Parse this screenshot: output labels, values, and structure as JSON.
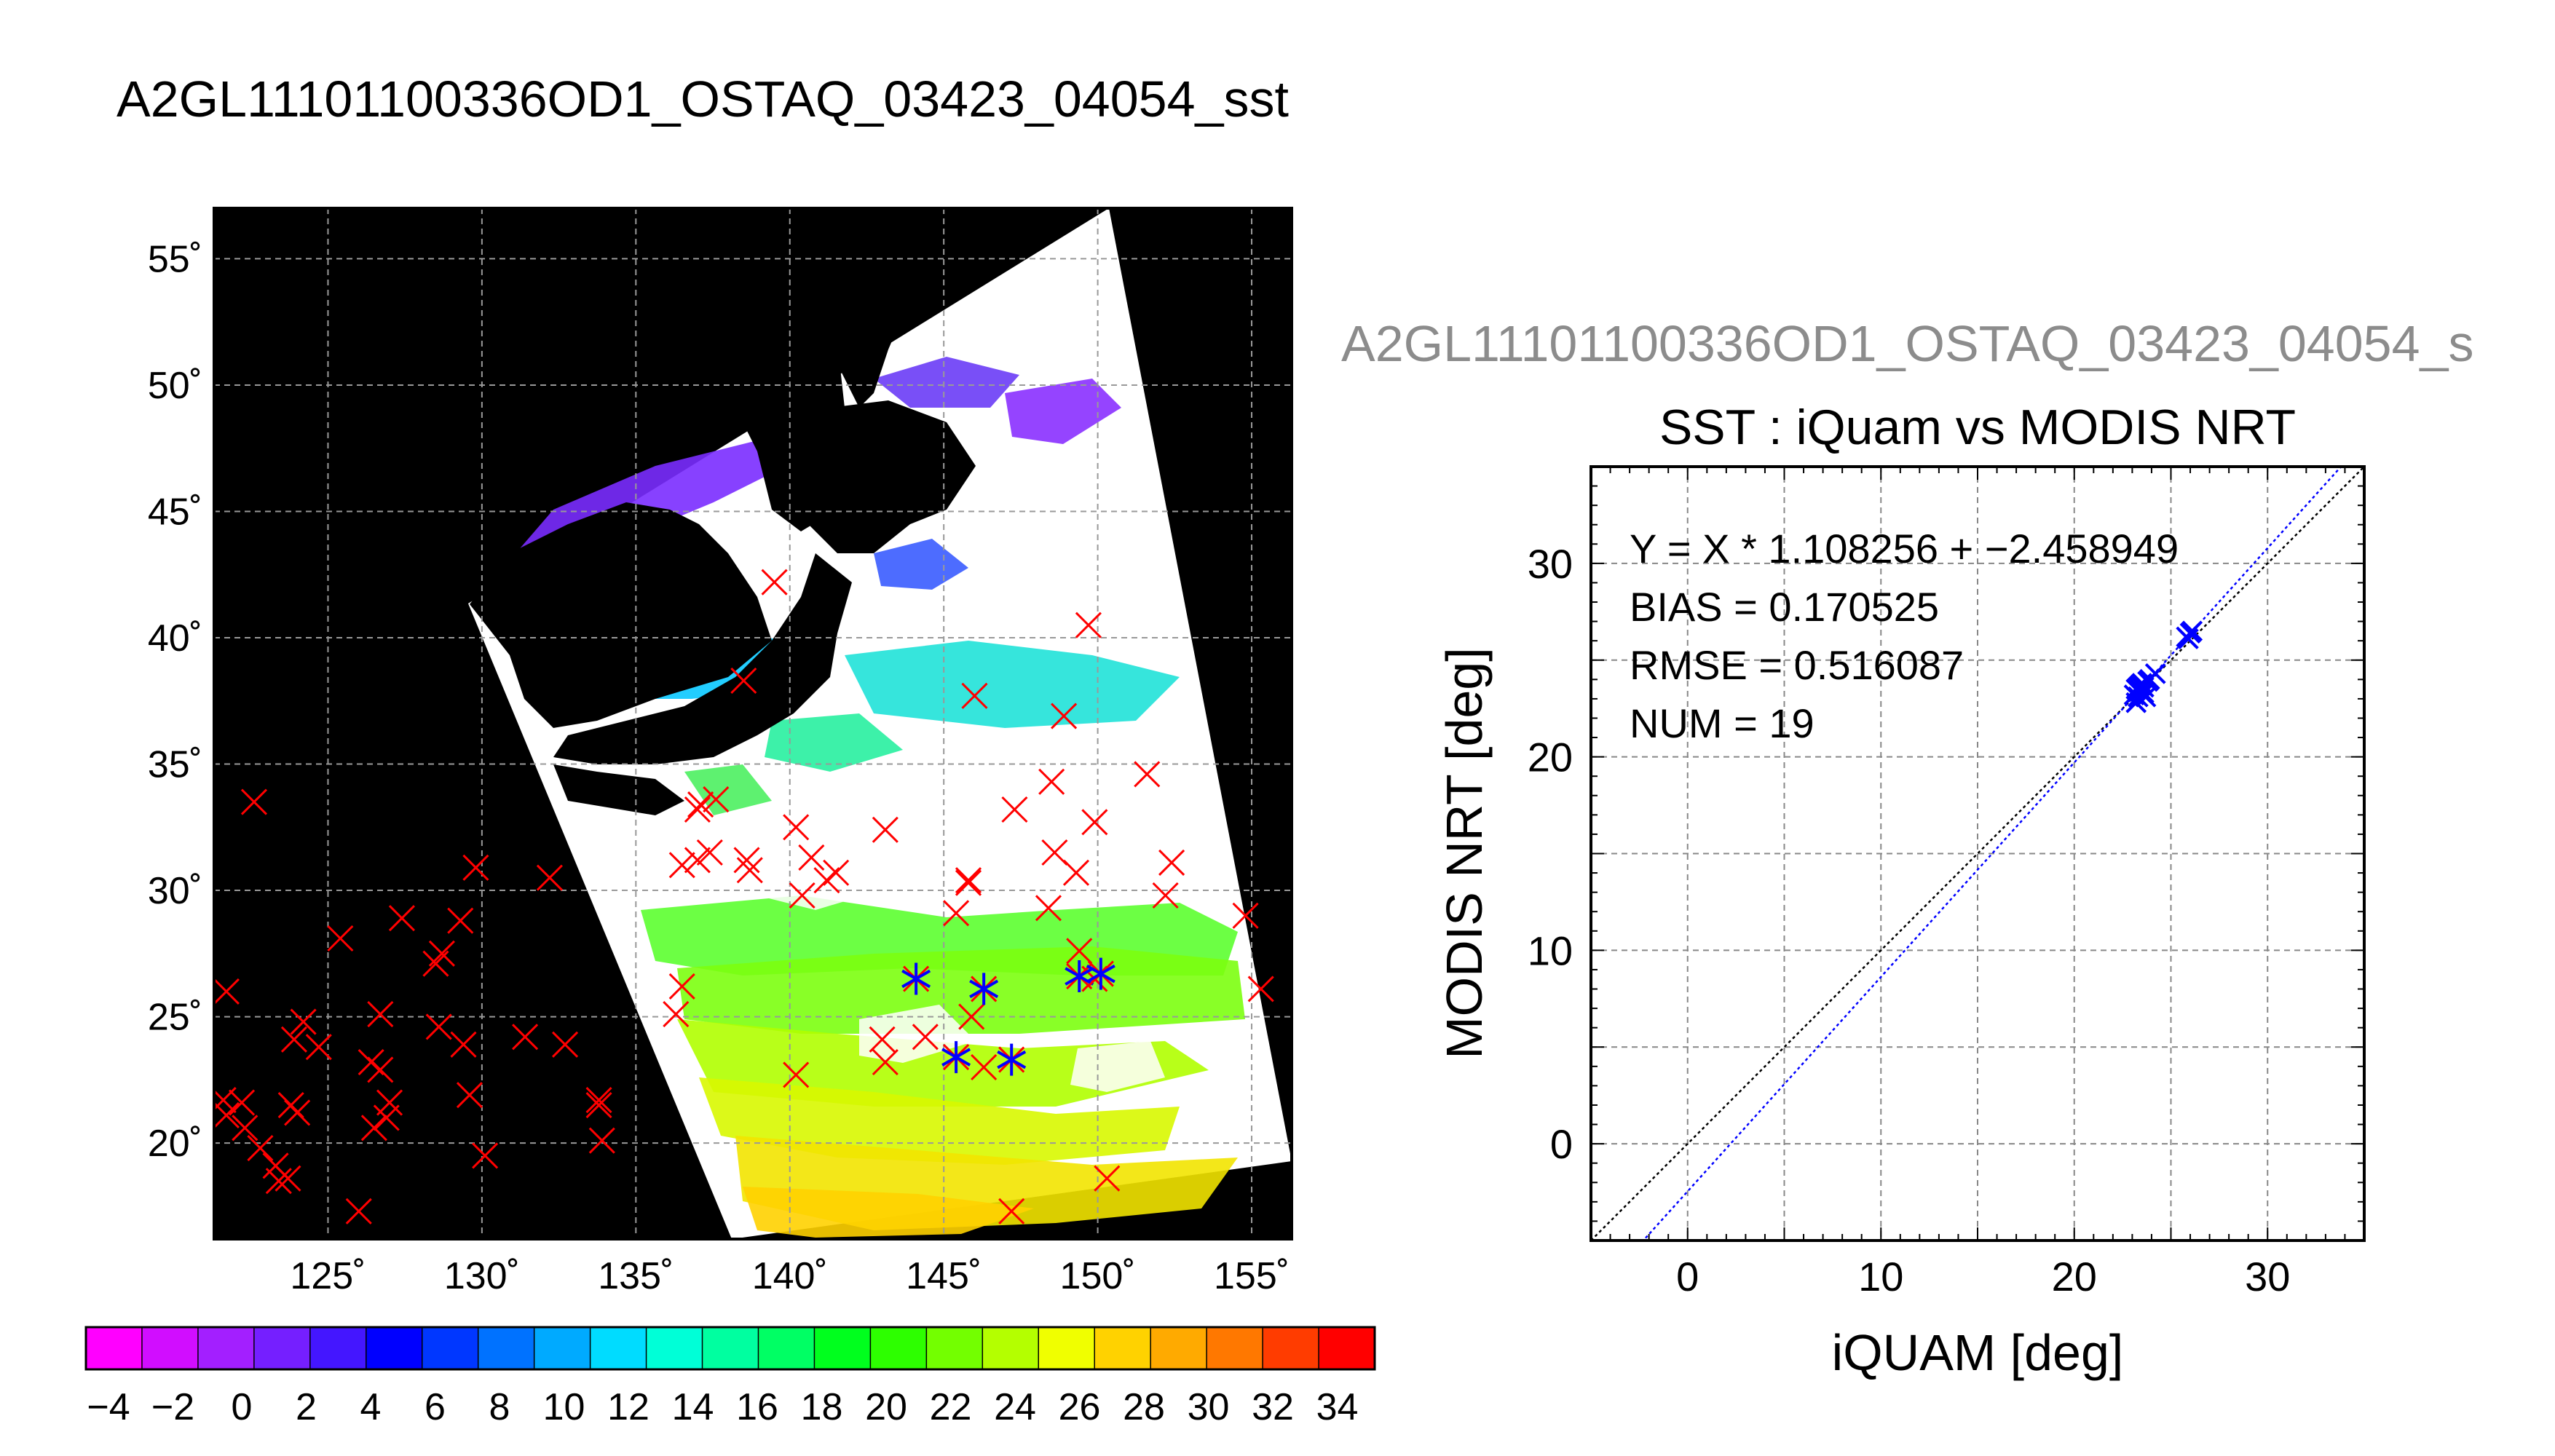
{
  "page": {
    "title": "A2GL11101100336OD1_OSTAQ_03423_04054_sst",
    "second_title": "A2GL11101100336OD1_OSTAQ_03423_04054_s"
  },
  "chart_data": [
    {
      "type": "map",
      "lon_ticks": [
        "125˚",
        "130˚",
        "135˚",
        "140˚",
        "145˚",
        "150˚",
        "155˚"
      ],
      "lat_ticks": [
        "55˚",
        "50˚",
        "45˚",
        "40˚",
        "35˚",
        "30˚",
        "25˚",
        "20˚"
      ],
      "lon_range": [
        121.3,
        156.3
      ],
      "lat_range": [
        16.2,
        57.0
      ],
      "background_color": "#000000",
      "grid": true,
      "colorbar": {
        "tick_labels": [
          "−4",
          "−2",
          "0",
          "2",
          "4",
          "6",
          "8",
          "10",
          "12",
          "14",
          "16",
          "18",
          "20",
          "22",
          "24",
          "26",
          "28",
          "30",
          "32",
          "34"
        ],
        "colors": [
          "#ff00ff",
          "#d10dff",
          "#a31fff",
          "#751fff",
          "#4416ff",
          "#0000ff",
          "#0037ff",
          "#0072ff",
          "#00aaff",
          "#00dcff",
          "#00ffd7",
          "#00ffa0",
          "#00ff64",
          "#00ff1e",
          "#2dff00",
          "#73ff00",
          "#b4ff00",
          "#f0ff00",
          "#ffd200",
          "#ffaa00",
          "#ff7800",
          "#ff3c00",
          "#ff0000"
        ]
      },
      "iquam_points_red_x": [
        [
          122.6,
          33.5
        ],
        [
          121.7,
          26.0
        ],
        [
          121.6,
          21.7
        ],
        [
          121.7,
          21.1
        ],
        [
          122.2,
          21.6
        ],
        [
          122.3,
          20.6
        ],
        [
          122.8,
          19.8
        ],
        [
          123.3,
          19.1
        ],
        [
          123.7,
          18.6
        ],
        [
          123.4,
          18.5
        ],
        [
          123.9,
          24.1
        ],
        [
          124.2,
          24.8
        ],
        [
          124.7,
          23.8
        ],
        [
          124.0,
          21.2
        ],
        [
          123.8,
          21.5
        ],
        [
          125.4,
          28.1
        ],
        [
          126.4,
          23.2
        ],
        [
          126.7,
          22.9
        ],
        [
          126.7,
          25.1
        ],
        [
          126.5,
          20.6
        ],
        [
          127.0,
          21.6
        ],
        [
          127.4,
          28.9
        ],
        [
          126.9,
          21.0
        ],
        [
          126.0,
          17.3
        ],
        [
          128.5,
          27.1
        ],
        [
          128.7,
          27.5
        ],
        [
          128.6,
          24.6
        ],
        [
          129.3,
          28.8
        ],
        [
          129.8,
          30.9
        ],
        [
          129.4,
          23.9
        ],
        [
          129.6,
          21.9
        ],
        [
          130.1,
          19.5
        ],
        [
          131.4,
          24.2
        ],
        [
          132.2,
          30.5
        ],
        [
          132.7,
          23.9
        ],
        [
          133.8,
          21.7
        ],
        [
          133.9,
          20.1
        ],
        [
          133.8,
          21.5
        ],
        [
          137.0,
          33.2
        ],
        [
          137.1,
          33.4
        ],
        [
          137.6,
          33.6
        ],
        [
          136.5,
          31.0
        ],
        [
          137.0,
          31.2
        ],
        [
          137.4,
          31.5
        ],
        [
          136.5,
          26.2
        ],
        [
          136.3,
          25.1
        ],
        [
          138.6,
          31.2
        ],
        [
          138.7,
          30.8
        ],
        [
          139.5,
          42.2
        ],
        [
          138.5,
          38.3
        ],
        [
          140.2,
          32.5
        ],
        [
          140.4,
          29.8
        ],
        [
          140.7,
          31.3
        ],
        [
          141.2,
          30.4
        ],
        [
          141.5,
          30.7
        ],
        [
          140.2,
          22.7
        ],
        [
          143.1,
          32.4
        ],
        [
          143.1,
          23.2
        ],
        [
          143.0,
          24.1
        ],
        [
          144.4,
          24.2
        ],
        [
          145.4,
          29.1
        ],
        [
          145.8,
          30.3
        ],
        [
          145.8,
          30.4
        ],
        [
          145.9,
          25.0
        ],
        [
          146.3,
          23.0
        ],
        [
          146.0,
          37.7
        ],
        [
          147.3,
          33.2
        ],
        [
          147.2,
          17.3
        ],
        [
          148.5,
          34.3
        ],
        [
          148.6,
          31.5
        ],
        [
          148.4,
          29.3
        ],
        [
          148.9,
          36.9
        ],
        [
          149.3,
          30.7
        ],
        [
          149.7,
          40.5
        ],
        [
          149.9,
          32.7
        ],
        [
          149.4,
          27.6
        ],
        [
          149.9,
          26.5
        ],
        [
          150.3,
          18.6
        ],
        [
          151.6,
          34.6
        ],
        [
          152.4,
          31.1
        ],
        [
          152.2,
          29.8
        ],
        [
          154.8,
          29.0
        ],
        [
          155.3,
          26.1
        ]
      ],
      "matched_points_blue_star": [
        [
          144.1,
          26.5
        ],
        [
          146.3,
          26.1
        ],
        [
          145.4,
          23.4
        ],
        [
          147.2,
          23.3
        ],
        [
          149.4,
          26.6
        ],
        [
          150.1,
          26.7
        ]
      ]
    },
    {
      "type": "scatter",
      "title": "SST : iQuam vs MODIS NRT",
      "xlabel": "iQUAM [deg]",
      "ylabel": "MODIS NRT [deg]",
      "xlim": [
        -5,
        35
      ],
      "ylim": [
        -5,
        35
      ],
      "x_ticks": [
        "0",
        "10",
        "20",
        "30"
      ],
      "y_ticks": [
        "0",
        "10",
        "20",
        "30"
      ],
      "grid": true,
      "stats": [
        "Y = X * 1.108256 + −2.458949",
        "BIAS = 0.170525",
        "RMSE = 0.516087",
        "NUM = 19"
      ],
      "regression": {
        "slope": 1.108256,
        "intercept": -2.458949,
        "color": "#0000ff"
      },
      "one_to_one_line": {
        "color": "#000000"
      },
      "points": [
        [
          23.2,
          23.5
        ],
        [
          23.4,
          23.7
        ],
        [
          23.3,
          23.1
        ],
        [
          23.6,
          23.3
        ],
        [
          23.5,
          23.8
        ],
        [
          23.2,
          22.8
        ],
        [
          23.8,
          23.9
        ],
        [
          23.4,
          23.4
        ],
        [
          23.9,
          24.0
        ],
        [
          24.2,
          24.3
        ],
        [
          23.6,
          23.6
        ],
        [
          23.1,
          23.2
        ],
        [
          23.7,
          23.1
        ],
        [
          23.3,
          23.6
        ],
        [
          23.5,
          23.3
        ],
        [
          25.8,
          26.2
        ],
        [
          26.0,
          26.4
        ],
        [
          25.9,
          26.1
        ],
        [
          26.1,
          26.5
        ]
      ],
      "point_color": "#0000ff"
    }
  ]
}
